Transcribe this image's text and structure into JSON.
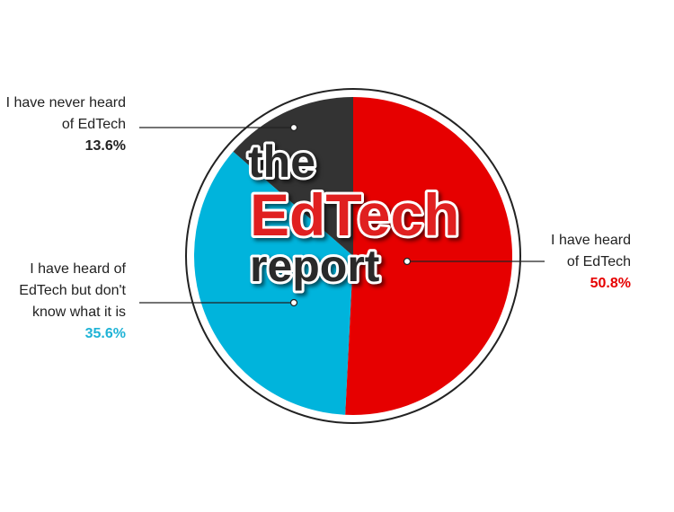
{
  "chart_data": {
    "type": "pie",
    "categories": [
      "I have heard of EdTech",
      "I have heard of EdTech but don't know what it is",
      "I have never heard of EdTech"
    ],
    "values": [
      50.8,
      35.6,
      13.6
    ],
    "value_labels": [
      "50.8%",
      "35.6%",
      "13.6%"
    ],
    "colors": [
      "#e60000",
      "#00b4dc",
      "#333333"
    ],
    "label_colors": [
      "#e60000",
      "#1fb3d6",
      "#222222"
    ],
    "watermark": [
      "the",
      "EdTech",
      "report"
    ]
  }
}
